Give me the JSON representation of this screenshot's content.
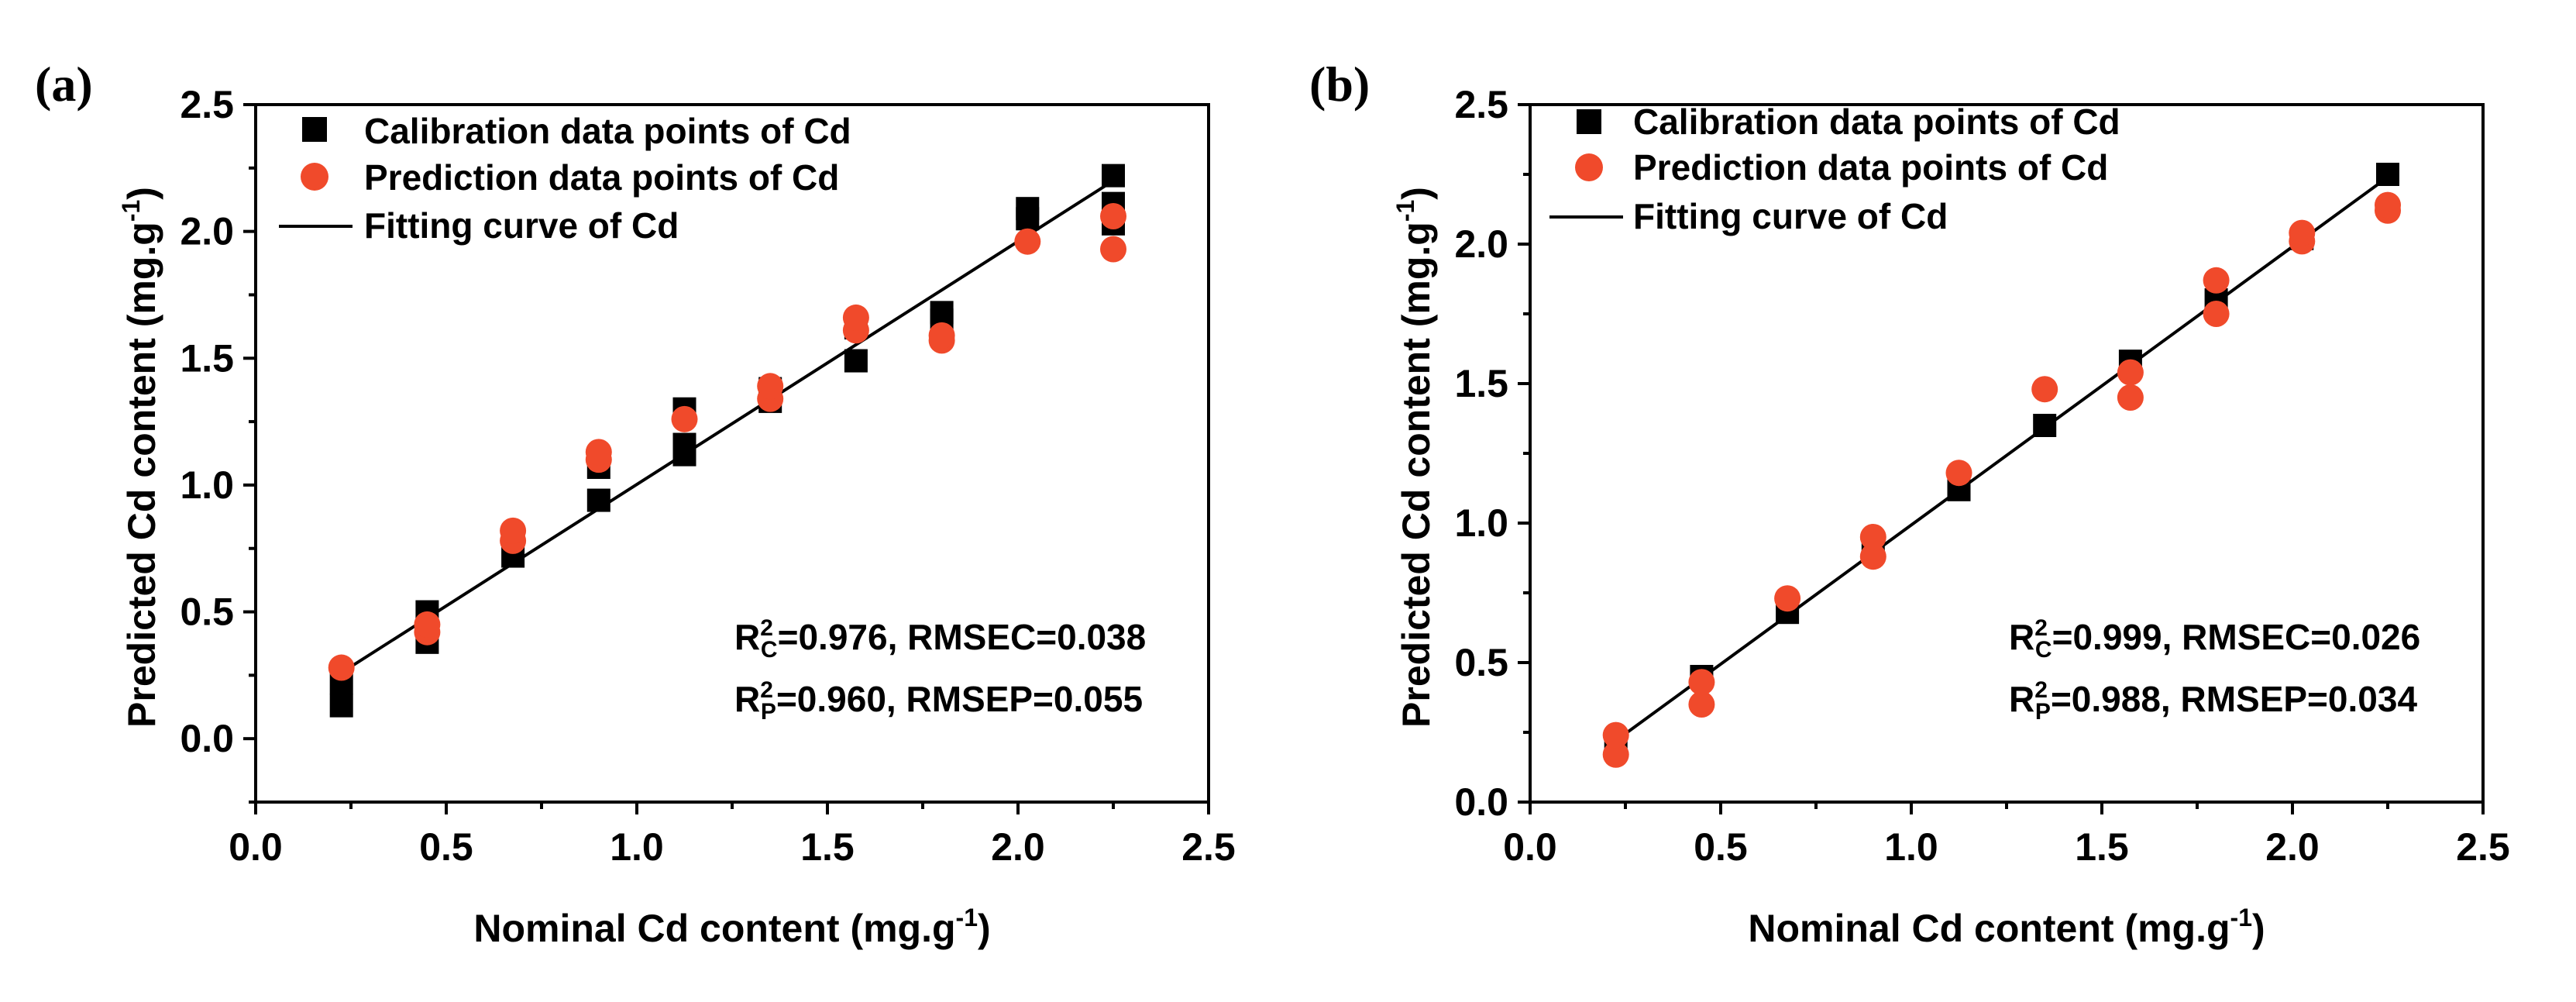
{
  "colors": {
    "calibration": "#000000",
    "prediction": "#f04a2b",
    "fit": "#000000",
    "axis": "#000000"
  },
  "chart_data": [
    {
      "type": "scatter",
      "panel_label": "(a)",
      "xlabel": "Nominal Cd content (mg.g-1)",
      "xlabel_main": "Nominal Cd content (mg.g",
      "xlabel_sup": "-1",
      "xlabel_end": ")",
      "ylabel": "Predicted Cd content (mg.g-1)",
      "ylabel_main": "Predicted Cd content (mg.g",
      "ylabel_sup": "-1",
      "ylabel_end": ")",
      "xlim": [
        0.0,
        2.5
      ],
      "ylim": [
        -0.25,
        2.5
      ],
      "xticks": [
        "0.0",
        "0.5",
        "1.0",
        "1.5",
        "2.0",
        "2.5"
      ],
      "yticks": [
        "0.0",
        "0.5",
        "1.0",
        "1.5",
        "2.0",
        "2.5"
      ],
      "legend_position": "top-left",
      "legend": {
        "calibration": "Calibration data points of Cd",
        "prediction": "Prediction data points of Cd",
        "fit": "Fitting curve of Cd"
      },
      "series": [
        {
          "name": "Calibration data points of Cd",
          "marker": "square",
          "x": [
            0.225,
            0.225,
            0.45,
            0.45,
            0.675,
            0.9,
            0.9,
            1.125,
            1.125,
            1.125,
            1.35,
            1.35,
            1.575,
            1.575,
            1.8,
            1.8,
            2.025,
            2.025,
            2.25,
            2.25,
            2.25
          ],
          "y": [
            0.13,
            0.22,
            0.38,
            0.5,
            0.72,
            0.94,
            1.07,
            1.12,
            1.16,
            1.3,
            1.33,
            1.38,
            1.49,
            1.62,
            1.65,
            1.68,
            2.05,
            2.09,
            2.03,
            2.11,
            2.22
          ]
        },
        {
          "name": "Prediction data points of Cd",
          "marker": "circle",
          "x": [
            0.225,
            0.45,
            0.45,
            0.675,
            0.675,
            0.9,
            0.9,
            1.125,
            1.35,
            1.35,
            1.575,
            1.575,
            1.8,
            1.8,
            2.025,
            2.25,
            2.25
          ],
          "y": [
            0.28,
            0.42,
            0.45,
            0.78,
            0.82,
            1.1,
            1.13,
            1.26,
            1.34,
            1.39,
            1.61,
            1.66,
            1.57,
            1.59,
            1.96,
            1.93,
            2.06
          ]
        },
        {
          "name": "Fitting curve of Cd",
          "type": "line",
          "x": [
            0.225,
            2.25
          ],
          "y": [
            0.26,
            2.2
          ]
        }
      ],
      "stats": {
        "cal_r": "R",
        "cal_sup": "2",
        "cal_sub": "C",
        "cal_rest": "=0.976, RMSEC=0.038",
        "pred_r": "R",
        "pred_sup": "2",
        "pred_sub": "P",
        "pred_rest": "=0.960, RMSEP=0.055"
      }
    },
    {
      "type": "scatter",
      "panel_label": "(b)",
      "xlabel": "Nominal Cd content (mg.g-1)",
      "xlabel_main": "Nominal Cd content (mg.g",
      "xlabel_sup": "-1",
      "xlabel_end": ")",
      "ylabel": "Predicted Cd content (mg.g-1)",
      "ylabel_main": "Predicted Cd content (mg.g",
      "ylabel_sup": "-1",
      "ylabel_end": ")",
      "xlim": [
        0.0,
        2.5
      ],
      "ylim": [
        0.0,
        2.5
      ],
      "xticks": [
        "0.0",
        "0.5",
        "1.0",
        "1.5",
        "2.0",
        "2.5"
      ],
      "yticks": [
        "0.0",
        "0.5",
        "1.0",
        "1.5",
        "2.0",
        "2.5"
      ],
      "legend_position": "top-left",
      "legend": {
        "calibration": "Calibration data points of  Cd",
        "prediction": "Prediction data points of Cd",
        "fit": "Fitting curve of Cd"
      },
      "series": [
        {
          "name": "Calibration data points of Cd",
          "marker": "square",
          "x": [
            0.225,
            0.45,
            0.675,
            0.9,
            1.125,
            1.35,
            1.575,
            1.8,
            2.025,
            2.25
          ],
          "y": [
            0.2,
            0.45,
            0.68,
            0.9,
            1.12,
            1.35,
            1.58,
            1.8,
            2.02,
            2.25
          ]
        },
        {
          "name": "Prediction data points of Cd",
          "marker": "circle",
          "x": [
            0.225,
            0.225,
            0.45,
            0.45,
            0.675,
            0.9,
            0.9,
            1.125,
            1.35,
            1.575,
            1.575,
            1.8,
            1.8,
            2.025,
            2.025,
            2.25,
            2.25
          ],
          "y": [
            0.17,
            0.24,
            0.35,
            0.43,
            0.73,
            0.88,
            0.95,
            1.18,
            1.48,
            1.45,
            1.54,
            1.75,
            1.87,
            2.01,
            2.04,
            2.12,
            2.14
          ]
        },
        {
          "name": "Fitting curve of Cd",
          "type": "line",
          "x": [
            0.225,
            2.25
          ],
          "y": [
            0.22,
            2.24
          ]
        }
      ],
      "stats": {
        "cal_r": "R",
        "cal_sup": "2",
        "cal_sub": "C",
        "cal_rest": "=0.999, RMSEC=0.026",
        "pred_r": "R",
        "pred_sup": "2",
        "pred_sub": "P",
        "pred_rest": "=0.988, RMSEP=0.034"
      }
    }
  ]
}
